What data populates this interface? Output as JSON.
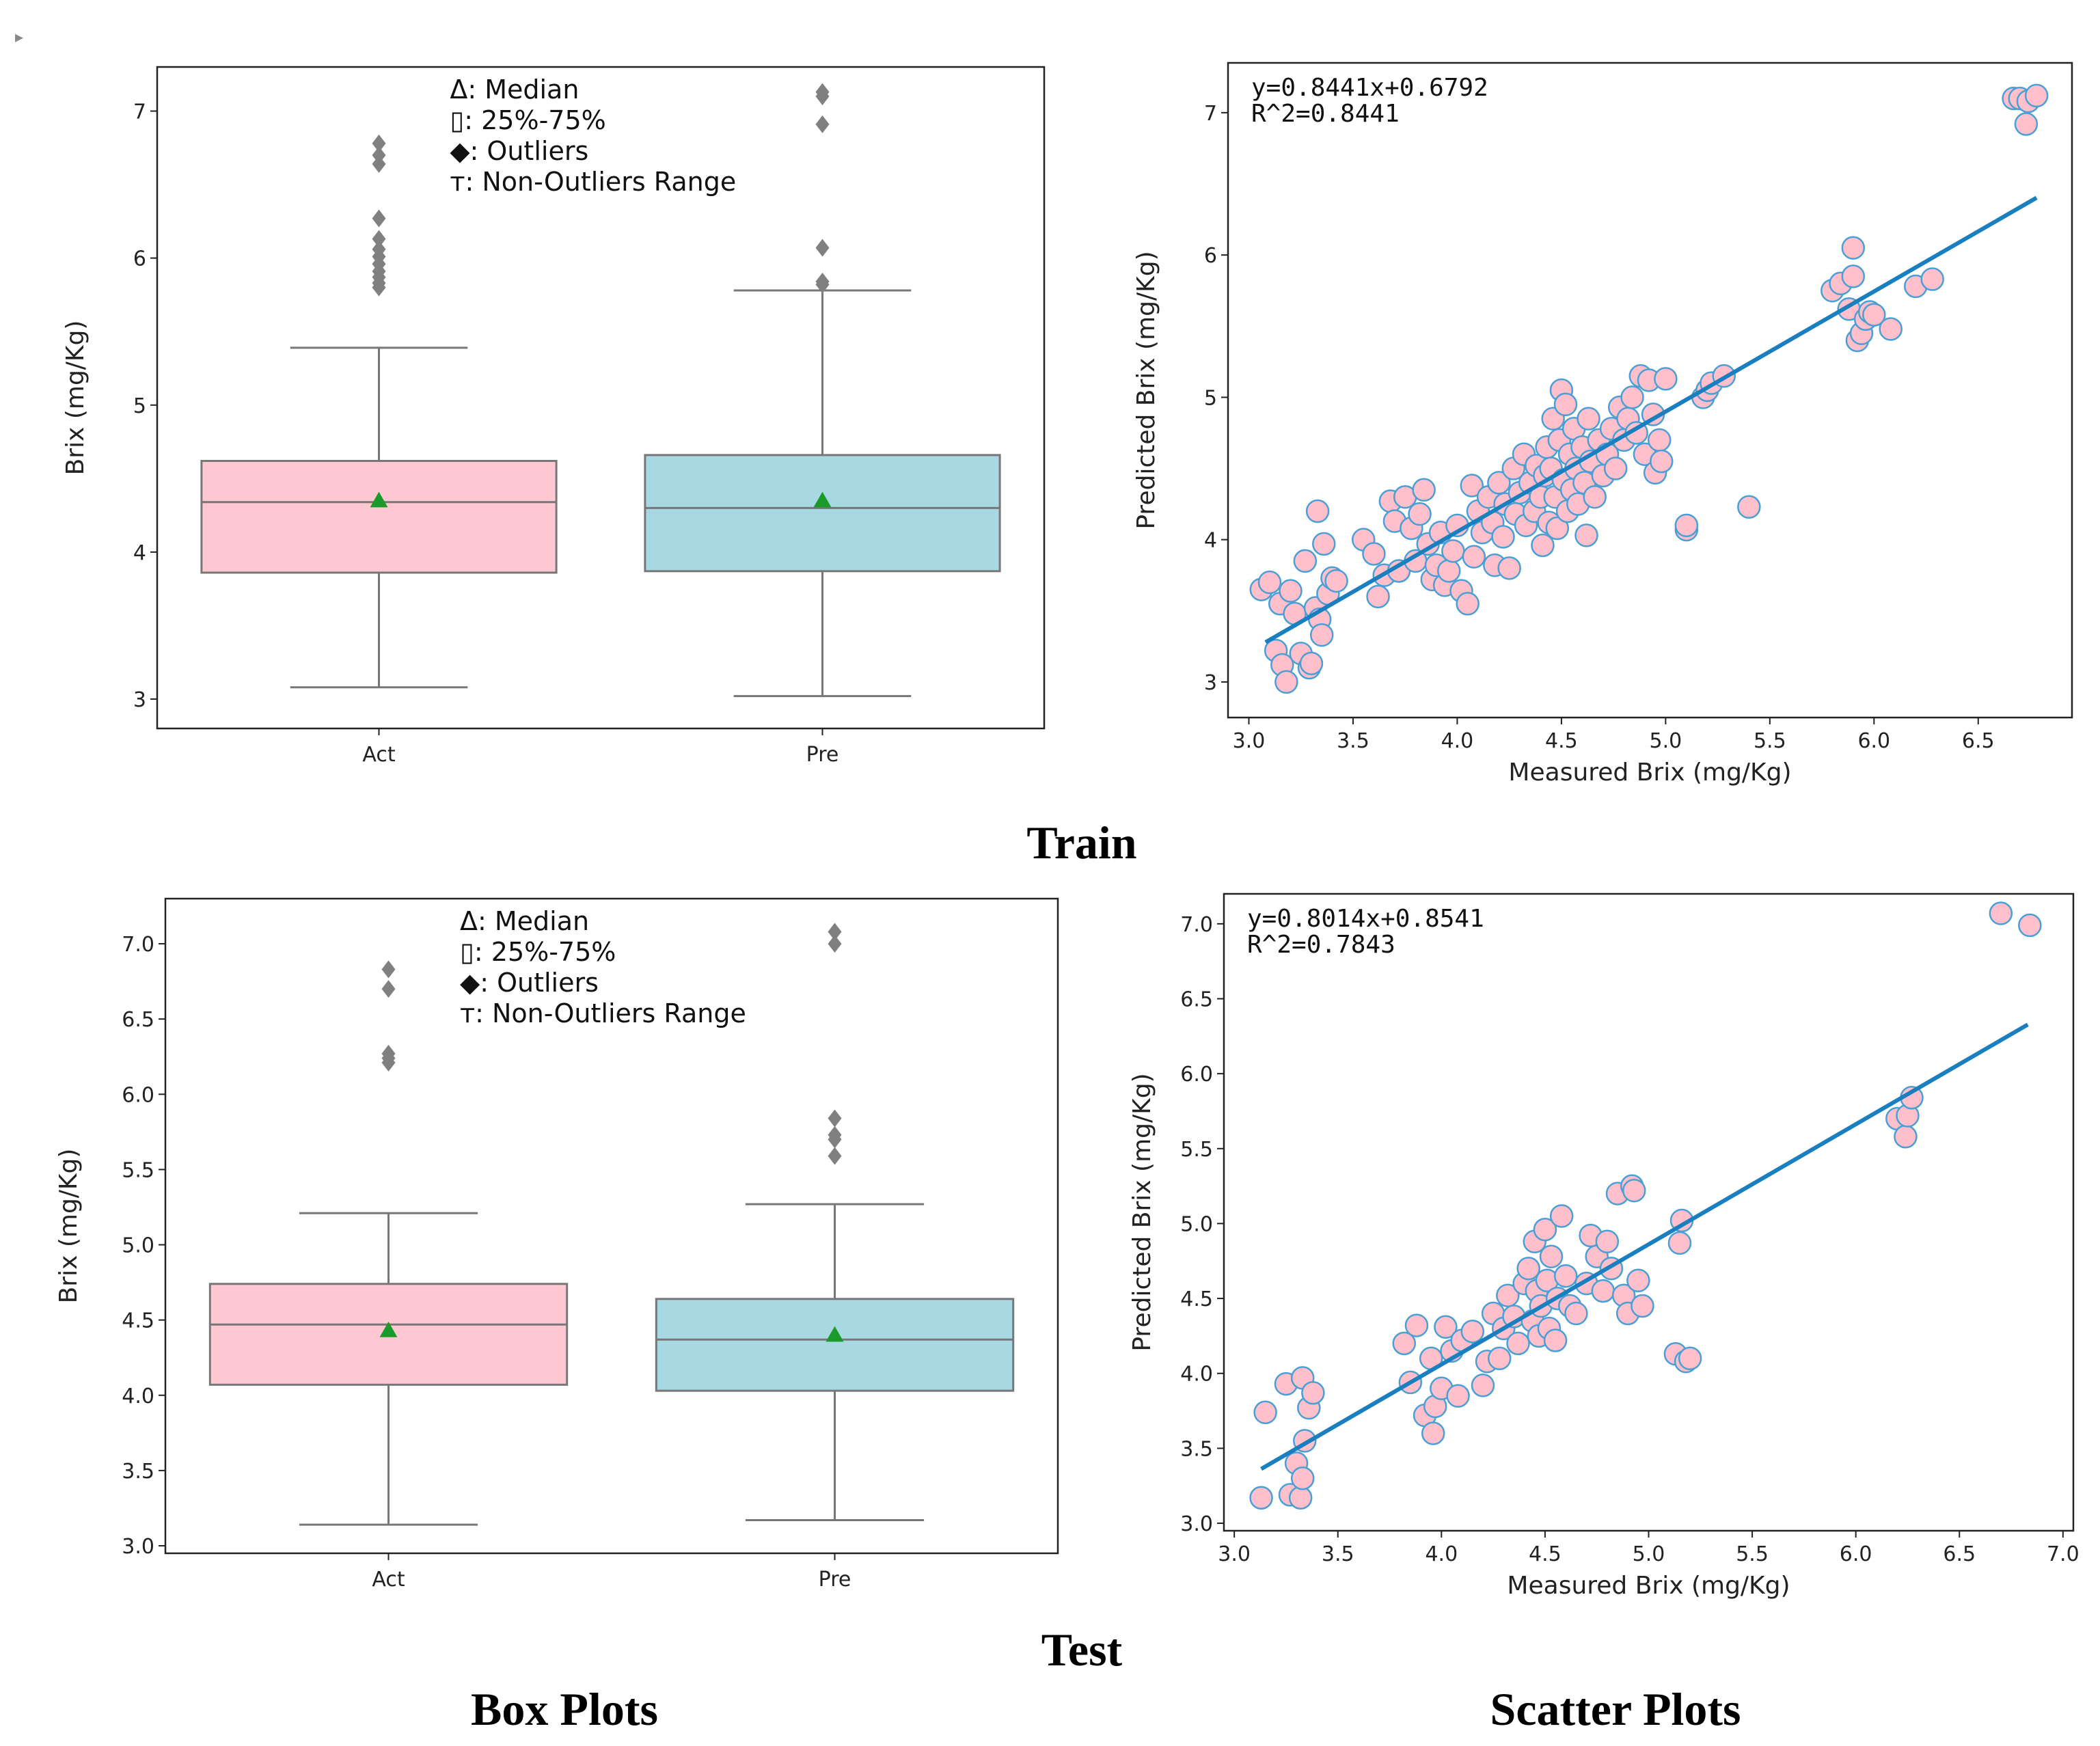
{
  "corner_mark": "▸",
  "captions": {
    "train": "Train",
    "test": "Test",
    "box": "Box Plots",
    "scatter": "Scatter Plots"
  },
  "chart_data": [
    {
      "id": "train-box",
      "type": "box",
      "ylabel": "Brix (mg/Kg)",
      "ylim": [
        2.8,
        7.3
      ],
      "yticks": [
        3,
        4,
        5,
        6,
        7
      ],
      "ytick_labels": [
        "3",
        "4",
        "5",
        "6",
        "7"
      ],
      "legend": [
        "Δ: Median",
        "▯: 25%-75%",
        "◆: Outliers",
        "ᴛ: Non-Outliers Range"
      ],
      "boxes": [
        {
          "label": "Act",
          "color": "#ffc8d2",
          "q1": 3.86,
          "median": 4.34,
          "q3": 4.62,
          "mean": 4.35,
          "whisker_low": 3.08,
          "whisker_high": 5.39,
          "outliers": [
            5.8,
            5.83,
            5.87,
            5.91,
            5.96,
            6.01,
            6.06,
            6.13,
            6.27,
            6.64,
            6.7,
            6.78
          ]
        },
        {
          "label": "Pre",
          "color": "#a8d8e2",
          "q1": 3.87,
          "median": 4.3,
          "q3": 4.66,
          "mean": 4.35,
          "whisker_low": 3.02,
          "whisker_high": 5.78,
          "outliers": [
            5.82,
            5.84,
            6.07,
            6.91,
            7.1,
            7.13
          ]
        }
      ]
    },
    {
      "id": "train-scatter",
      "type": "scatter",
      "xlabel": "Measured Brix (mg/Kg)",
      "ylabel": "Predicted Brix (mg/Kg)",
      "xlim": [
        2.9,
        6.95
      ],
      "ylim": [
        2.75,
        7.35
      ],
      "xticks": [
        3.0,
        3.5,
        4.0,
        4.5,
        5.0,
        5.5,
        6.0,
        6.5
      ],
      "xtick_labels": [
        "3.0",
        "3.5",
        "4.0",
        "4.5",
        "5.0",
        "5.5",
        "6.0",
        "6.5"
      ],
      "yticks": [
        3,
        4,
        5,
        6,
        7
      ],
      "ytick_labels": [
        "3",
        "4",
        "5",
        "6",
        "7"
      ],
      "equation": "y=0.8441x+0.6792",
      "r2": "R^2=0.8441",
      "fit": {
        "slope": 0.8441,
        "intercept": 0.6792,
        "x_range": [
          3.08,
          6.78
        ]
      },
      "point_fill": "#ffc0cc",
      "point_edge": "#4a9fd4",
      "line_color": "#1a7fbf",
      "points": [
        [
          3.06,
          3.65
        ],
        [
          3.1,
          3.7
        ],
        [
          3.13,
          3.22
        ],
        [
          3.15,
          3.55
        ],
        [
          3.16,
          3.12
        ],
        [
          3.18,
          3.0
        ],
        [
          3.2,
          3.64
        ],
        [
          3.22,
          3.48
        ],
        [
          3.25,
          3.2
        ],
        [
          3.27,
          3.85
        ],
        [
          3.29,
          3.1
        ],
        [
          3.3,
          3.13
        ],
        [
          3.32,
          3.52
        ],
        [
          3.33,
          4.2
        ],
        [
          3.34,
          3.44
        ],
        [
          3.35,
          3.33
        ],
        [
          3.36,
          3.97
        ],
        [
          3.38,
          3.62
        ],
        [
          3.4,
          3.73
        ],
        [
          3.42,
          3.71
        ],
        [
          3.55,
          4.0
        ],
        [
          3.6,
          3.9
        ],
        [
          3.62,
          3.6
        ],
        [
          3.65,
          3.75
        ],
        [
          3.68,
          4.27
        ],
        [
          3.7,
          4.13
        ],
        [
          3.72,
          3.78
        ],
        [
          3.75,
          4.3
        ],
        [
          3.78,
          4.08
        ],
        [
          3.8,
          3.85
        ],
        [
          3.82,
          4.18
        ],
        [
          3.84,
          4.35
        ],
        [
          3.86,
          3.97
        ],
        [
          3.88,
          3.72
        ],
        [
          3.9,
          3.82
        ],
        [
          3.92,
          4.05
        ],
        [
          3.94,
          3.68
        ],
        [
          3.96,
          3.78
        ],
        [
          3.98,
          3.92
        ],
        [
          4.0,
          4.1
        ],
        [
          4.02,
          3.64
        ],
        [
          4.05,
          3.55
        ],
        [
          4.07,
          4.38
        ],
        [
          4.08,
          3.88
        ],
        [
          4.1,
          4.2
        ],
        [
          4.12,
          4.05
        ],
        [
          4.15,
          4.3
        ],
        [
          4.17,
          4.12
        ],
        [
          4.18,
          3.82
        ],
        [
          4.2,
          4.4
        ],
        [
          4.22,
          4.02
        ],
        [
          4.23,
          4.25
        ],
        [
          4.25,
          3.8
        ],
        [
          4.27,
          4.5
        ],
        [
          4.28,
          4.18
        ],
        [
          4.3,
          4.33
        ],
        [
          4.32,
          4.6
        ],
        [
          4.33,
          4.1
        ],
        [
          4.35,
          4.4
        ],
        [
          4.37,
          4.2
        ],
        [
          4.38,
          4.52
        ],
        [
          4.4,
          4.3
        ],
        [
          4.41,
          3.96
        ],
        [
          4.42,
          4.45
        ],
        [
          4.43,
          4.65
        ],
        [
          4.44,
          4.12
        ],
        [
          4.45,
          4.5
        ],
        [
          4.46,
          4.85
        ],
        [
          4.47,
          4.3
        ],
        [
          4.48,
          4.08
        ],
        [
          4.49,
          4.7
        ],
        [
          4.5,
          5.05
        ],
        [
          4.51,
          4.42
        ],
        [
          4.52,
          4.95
        ],
        [
          4.53,
          4.2
        ],
        [
          4.54,
          4.6
        ],
        [
          4.55,
          4.35
        ],
        [
          4.56,
          4.78
        ],
        [
          4.57,
          4.5
        ],
        [
          4.58,
          4.25
        ],
        [
          4.6,
          4.65
        ],
        [
          4.61,
          4.4
        ],
        [
          4.62,
          4.03
        ],
        [
          4.63,
          4.85
        ],
        [
          4.64,
          4.55
        ],
        [
          4.66,
          4.3
        ],
        [
          4.68,
          4.7
        ],
        [
          4.7,
          4.45
        ],
        [
          4.72,
          4.6
        ],
        [
          4.74,
          4.78
        ],
        [
          4.76,
          4.5
        ],
        [
          4.78,
          4.93
        ],
        [
          4.8,
          4.7
        ],
        [
          4.82,
          4.85
        ],
        [
          4.84,
          5.0
        ],
        [
          4.86,
          4.75
        ],
        [
          4.88,
          5.15
        ],
        [
          4.9,
          4.6
        ],
        [
          4.92,
          5.12
        ],
        [
          4.94,
          4.88
        ],
        [
          4.95,
          4.47
        ],
        [
          4.97,
          4.7
        ],
        [
          4.98,
          4.55
        ],
        [
          5.0,
          5.13
        ],
        [
          5.1,
          4.07
        ],
        [
          5.1,
          4.1
        ],
        [
          5.18,
          5.0
        ],
        [
          5.2,
          5.05
        ],
        [
          5.22,
          5.1
        ],
        [
          5.28,
          5.15
        ],
        [
          5.4,
          4.23
        ],
        [
          5.8,
          5.75
        ],
        [
          5.84,
          5.8
        ],
        [
          5.88,
          5.62
        ],
        [
          5.9,
          5.85
        ],
        [
          5.9,
          6.05
        ],
        [
          5.92,
          5.4
        ],
        [
          5.94,
          5.45
        ],
        [
          5.96,
          5.55
        ],
        [
          5.98,
          5.6
        ],
        [
          6.0,
          5.58
        ],
        [
          6.08,
          5.48
        ],
        [
          6.2,
          5.78
        ],
        [
          6.28,
          5.83
        ],
        [
          6.67,
          7.1
        ],
        [
          6.7,
          7.1
        ],
        [
          6.73,
          6.92
        ],
        [
          6.74,
          7.08
        ],
        [
          6.78,
          7.12
        ]
      ]
    },
    {
      "id": "test-box",
      "type": "box",
      "ylabel": "Brix (mg/Kg)",
      "ylim": [
        2.95,
        7.3
      ],
      "yticks": [
        3.0,
        3.5,
        4.0,
        4.5,
        5.0,
        5.5,
        6.0,
        6.5,
        7.0
      ],
      "ytick_labels": [
        "3.0",
        "3.5",
        "4.0",
        "4.5",
        "5.0",
        "5.5",
        "6.0",
        "6.5",
        "7.0"
      ],
      "legend": [
        "Δ: Median",
        "▯: 25%-75%",
        "◆: Outliers",
        "ᴛ: Non-Outliers Range"
      ],
      "boxes": [
        {
          "label": "Act",
          "color": "#ffc8d2",
          "q1": 4.07,
          "median": 4.47,
          "q3": 4.74,
          "mean": 4.43,
          "whisker_low": 3.14,
          "whisker_high": 5.21,
          "outliers": [
            6.21,
            6.24,
            6.27,
            6.7,
            6.83
          ]
        },
        {
          "label": "Pre",
          "color": "#a8d8e2",
          "q1": 4.03,
          "median": 4.37,
          "q3": 4.64,
          "mean": 4.4,
          "whisker_low": 3.17,
          "whisker_high": 5.27,
          "outliers": [
            5.59,
            5.7,
            5.73,
            5.84,
            7.0,
            7.08
          ]
        }
      ]
    },
    {
      "id": "test-scatter",
      "type": "scatter",
      "xlabel": "Measured Brix (mg/Kg)",
      "ylabel": "Predicted Brix (mg/Kg)",
      "xlim": [
        2.95,
        7.05
      ],
      "ylim": [
        2.95,
        7.2
      ],
      "xticks": [
        3.0,
        3.5,
        4.0,
        4.5,
        5.0,
        5.5,
        6.0,
        6.5,
        7.0
      ],
      "xtick_labels": [
        "3.0",
        "3.5",
        "4.0",
        "4.5",
        "5.0",
        "5.5",
        "6.0",
        "6.5",
        "7.0"
      ],
      "yticks": [
        3.0,
        3.5,
        4.0,
        4.5,
        5.0,
        5.5,
        6.0,
        6.5,
        7.0
      ],
      "ytick_labels": [
        "3.0",
        "3.5",
        "4.0",
        "4.5",
        "5.0",
        "5.5",
        "6.0",
        "6.5",
        "7.0"
      ],
      "equation": "y=0.8014x+0.8541",
      "r2": "R^2=0.7843",
      "fit": {
        "slope": 0.8014,
        "intercept": 0.8541,
        "x_range": [
          3.13,
          6.83
        ]
      },
      "point_fill": "#ffc0cc",
      "point_edge": "#4a9fd4",
      "line_color": "#1a7fbf",
      "points": [
        [
          3.13,
          3.17
        ],
        [
          3.15,
          3.74
        ],
        [
          3.25,
          3.93
        ],
        [
          3.27,
          3.19
        ],
        [
          3.3,
          3.4
        ],
        [
          3.32,
          3.17
        ],
        [
          3.33,
          3.97
        ],
        [
          3.33,
          3.3
        ],
        [
          3.34,
          3.55
        ],
        [
          3.36,
          3.77
        ],
        [
          3.38,
          3.87
        ],
        [
          3.82,
          4.2
        ],
        [
          3.85,
          3.94
        ],
        [
          3.88,
          4.32
        ],
        [
          3.92,
          3.72
        ],
        [
          3.95,
          4.1
        ],
        [
          3.96,
          3.6
        ],
        [
          3.97,
          3.78
        ],
        [
          4.0,
          3.9
        ],
        [
          4.02,
          4.31
        ],
        [
          4.05,
          4.15
        ],
        [
          4.08,
          3.85
        ],
        [
          4.1,
          4.22
        ],
        [
          4.15,
          4.28
        ],
        [
          4.2,
          3.92
        ],
        [
          4.22,
          4.08
        ],
        [
          4.25,
          4.4
        ],
        [
          4.28,
          4.1
        ],
        [
          4.3,
          4.3
        ],
        [
          4.32,
          4.52
        ],
        [
          4.35,
          4.38
        ],
        [
          4.37,
          4.2
        ],
        [
          4.4,
          4.6
        ],
        [
          4.42,
          4.7
        ],
        [
          4.44,
          4.35
        ],
        [
          4.45,
          4.88
        ],
        [
          4.46,
          4.55
        ],
        [
          4.47,
          4.25
        ],
        [
          4.48,
          4.45
        ],
        [
          4.5,
          4.96
        ],
        [
          4.51,
          4.62
        ],
        [
          4.52,
          4.3
        ],
        [
          4.53,
          4.78
        ],
        [
          4.55,
          4.22
        ],
        [
          4.56,
          4.5
        ],
        [
          4.58,
          5.05
        ],
        [
          4.6,
          4.65
        ],
        [
          4.62,
          4.45
        ],
        [
          4.65,
          4.4
        ],
        [
          4.7,
          4.6
        ],
        [
          4.72,
          4.92
        ],
        [
          4.75,
          4.78
        ],
        [
          4.78,
          4.55
        ],
        [
          4.8,
          4.88
        ],
        [
          4.82,
          4.7
        ],
        [
          4.85,
          5.2
        ],
        [
          4.88,
          4.52
        ],
        [
          4.9,
          4.4
        ],
        [
          4.92,
          5.25
        ],
        [
          4.93,
          5.22
        ],
        [
          4.95,
          4.62
        ],
        [
          4.97,
          4.45
        ],
        [
          5.13,
          4.13
        ],
        [
          5.15,
          4.87
        ],
        [
          5.16,
          5.02
        ],
        [
          5.18,
          4.08
        ],
        [
          5.2,
          4.1
        ],
        [
          6.2,
          5.7
        ],
        [
          6.24,
          5.58
        ],
        [
          6.25,
          5.72
        ],
        [
          6.27,
          5.84
        ],
        [
          6.7,
          7.07
        ],
        [
          6.84,
          6.99
        ]
      ]
    }
  ]
}
